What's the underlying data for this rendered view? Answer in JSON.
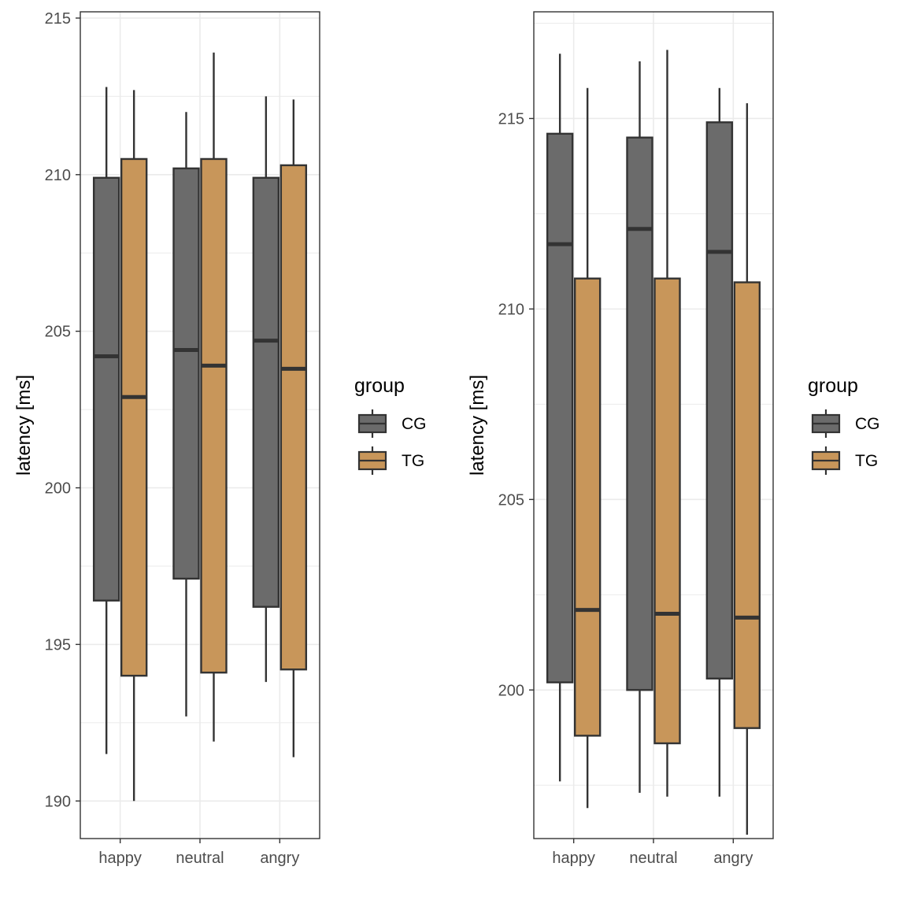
{
  "colors": {
    "CG": "#6b6b6b",
    "TG": "#c8965a",
    "outline": "#333333",
    "grid": "#ebebeb",
    "panel_border": "#333333"
  },
  "chart_data": [
    {
      "type": "boxplot",
      "ylabel": "latency [ms]",
      "xlabel": "",
      "categories": [
        "happy",
        "neutral",
        "angry"
      ],
      "ylim": [
        188.8,
        215.2
      ],
      "yticks": [
        190,
        195,
        200,
        205,
        210,
        215
      ],
      "grid": true,
      "legend": {
        "title": "group",
        "position": "right",
        "entries": [
          "CG",
          "TG"
        ]
      },
      "series": [
        {
          "name": "CG",
          "boxes": [
            {
              "category": "happy",
              "min": 191.5,
              "q1": 196.4,
              "median": 204.2,
              "q3": 209.9,
              "max": 212.8
            },
            {
              "category": "neutral",
              "min": 192.7,
              "q1": 197.1,
              "median": 204.4,
              "q3": 210.2,
              "max": 212.0
            },
            {
              "category": "angry",
              "min": 193.8,
              "q1": 196.2,
              "median": 204.7,
              "q3": 209.9,
              "max": 212.5
            }
          ]
        },
        {
          "name": "TG",
          "boxes": [
            {
              "category": "happy",
              "min": 190.0,
              "q1": 194.0,
              "median": 202.9,
              "q3": 210.5,
              "max": 212.7
            },
            {
              "category": "neutral",
              "min": 191.9,
              "q1": 194.1,
              "median": 203.9,
              "q3": 210.5,
              "max": 213.9
            },
            {
              "category": "angry",
              "min": 191.4,
              "q1": 194.2,
              "median": 203.8,
              "q3": 210.3,
              "max": 212.4
            }
          ]
        }
      ]
    },
    {
      "type": "boxplot",
      "ylabel": "latency [ms]",
      "xlabel": "",
      "categories": [
        "happy",
        "neutral",
        "angry"
      ],
      "ylim": [
        196.1,
        217.8
      ],
      "yticks": [
        200,
        205,
        210,
        215
      ],
      "grid": true,
      "legend": {
        "title": "group",
        "position": "right",
        "entries": [
          "CG",
          "TG"
        ]
      },
      "series": [
        {
          "name": "CG",
          "boxes": [
            {
              "category": "happy",
              "min": 197.6,
              "q1": 200.2,
              "median": 211.7,
              "q3": 214.6,
              "max": 216.7
            },
            {
              "category": "neutral",
              "min": 197.3,
              "q1": 200.0,
              "median": 212.1,
              "q3": 214.5,
              "max": 216.5
            },
            {
              "category": "angry",
              "min": 197.2,
              "q1": 200.3,
              "median": 211.5,
              "q3": 214.9,
              "max": 215.8
            }
          ]
        },
        {
          "name": "TG",
          "boxes": [
            {
              "category": "happy",
              "min": 196.9,
              "q1": 198.8,
              "median": 202.1,
              "q3": 210.8,
              "max": 215.8
            },
            {
              "category": "neutral",
              "min": 197.2,
              "q1": 198.6,
              "median": 202.0,
              "q3": 210.8,
              "max": 216.8
            },
            {
              "category": "angry",
              "min": 196.2,
              "q1": 199.0,
              "median": 201.9,
              "q3": 210.7,
              "max": 215.4
            }
          ]
        }
      ]
    }
  ]
}
